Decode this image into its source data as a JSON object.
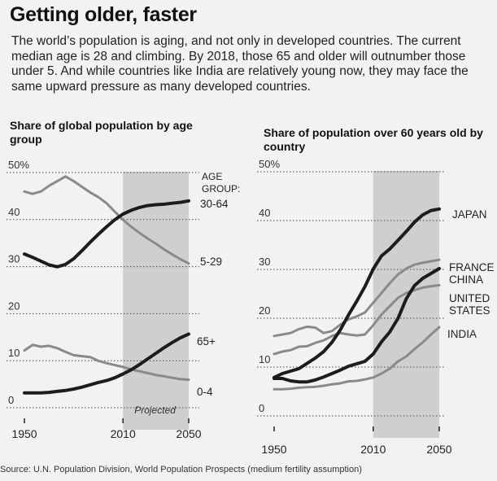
{
  "headline": "Getting older, faster",
  "dek": "The world’s population is aging, and not only in developed countries. The current median age is 28 and climbing. By 2018, those 65 and older will outnumber those under 5. And while countries like India are relatively young now, they may face the same upward pressure as many developed countries.",
  "source": "Source: U.N. Population Division, World Population Prospects (medium fertility assumption)",
  "colors": {
    "dark_line": "#1c1c1c",
    "light_line": "#8a8a8a",
    "projection_shade": "#c9c9c9",
    "grid": "#444444"
  },
  "chart_data": [
    {
      "type": "line",
      "title": "Share of global population by age group",
      "x": [
        1950,
        1955,
        1960,
        1965,
        1970,
        1975,
        1980,
        1985,
        1990,
        1995,
        2000,
        2005,
        2010,
        2015,
        2020,
        2025,
        2030,
        2035,
        2040,
        2045,
        2050
      ],
      "xlim": [
        1950,
        2050
      ],
      "xticks": [
        "1950",
        "2010",
        "2050"
      ],
      "ylim": [
        0,
        50
      ],
      "yticks": [
        "0",
        "10",
        "20",
        "30",
        "40",
        "50%"
      ],
      "grid": true,
      "projected_from": 2010,
      "projected_label": "Projected",
      "legend_title": "AGE GROUP:",
      "series": [
        {
          "name": "30-64",
          "style": "dark",
          "values": [
            32.5,
            31.8,
            31.0,
            30.2,
            29.8,
            30.3,
            31.5,
            33.2,
            35.0,
            36.7,
            38.3,
            39.8,
            41.0,
            41.8,
            42.4,
            42.8,
            43.0,
            43.1,
            43.3,
            43.5,
            43.8
          ]
        },
        {
          "name": "5-29",
          "style": "light",
          "values": [
            45.8,
            45.3,
            45.8,
            47.0,
            48.0,
            49.0,
            48.0,
            46.8,
            45.6,
            44.6,
            43.3,
            41.5,
            39.8,
            38.3,
            37.0,
            35.8,
            34.7,
            33.5,
            32.4,
            31.4,
            30.5
          ]
        },
        {
          "name": "65+",
          "style": "dark",
          "values": [
            3.0,
            3.0,
            3.0,
            3.1,
            3.3,
            3.5,
            3.8,
            4.2,
            4.7,
            5.2,
            5.6,
            6.2,
            7.0,
            7.9,
            9.0,
            10.2,
            11.4,
            12.6,
            13.7,
            14.7,
            15.5
          ]
        },
        {
          "name": "0-4",
          "style": "light",
          "values": [
            12.0,
            13.2,
            12.8,
            13.0,
            12.5,
            11.7,
            11.0,
            10.8,
            10.6,
            9.8,
            9.3,
            8.9,
            8.5,
            8.0,
            7.6,
            7.2,
            6.8,
            6.5,
            6.2,
            5.9,
            5.8
          ]
        }
      ]
    },
    {
      "type": "line",
      "title": "Share of population over 60 years old by country",
      "x": [
        1950,
        1955,
        1960,
        1965,
        1970,
        1975,
        1980,
        1985,
        1990,
        1995,
        2000,
        2005,
        2010,
        2015,
        2020,
        2025,
        2030,
        2035,
        2040,
        2045,
        2050
      ],
      "xlim": [
        1950,
        2050
      ],
      "xticks": [
        "1950",
        "2010",
        "2050"
      ],
      "ylim": [
        0,
        50
      ],
      "yticks": [
        "0",
        "10",
        "20",
        "30",
        "40",
        "50%"
      ],
      "grid": true,
      "projected_from": 2010,
      "series": [
        {
          "name": "JAPAN",
          "style": "dark",
          "values": [
            7.7,
            8.5,
            9.0,
            9.5,
            10.6,
            11.7,
            13.0,
            14.9,
            17.4,
            20.5,
            23.3,
            26.3,
            29.9,
            32.6,
            34.0,
            35.8,
            37.6,
            39.5,
            41.0,
            41.9,
            42.2
          ]
        },
        {
          "name": "FRANCE",
          "style": "light",
          "values": [
            16.2,
            16.5,
            16.8,
            17.6,
            18.1,
            17.9,
            16.8,
            17.2,
            18.5,
            19.6,
            20.2,
            21.0,
            23.0,
            25.0,
            27.0,
            28.8,
            30.0,
            30.8,
            31.2,
            31.5,
            31.8
          ]
        },
        {
          "name": "CHINA",
          "style": "dark",
          "values": [
            7.5,
            7.5,
            7.0,
            6.8,
            6.8,
            7.2,
            7.8,
            8.5,
            9.2,
            10.0,
            10.5,
            11.0,
            12.5,
            15.0,
            17.0,
            19.8,
            23.8,
            26.5,
            28.0,
            29.0,
            30.0
          ]
        },
        {
          "name": "UNITED STATES",
          "style": "light",
          "values": [
            12.5,
            13.0,
            13.3,
            14.0,
            14.1,
            14.8,
            15.3,
            16.2,
            16.8,
            16.5,
            16.3,
            16.5,
            18.4,
            20.6,
            22.3,
            24.0,
            25.0,
            25.6,
            26.1,
            26.4,
            26.6
          ]
        },
        {
          "name": "INDIA",
          "style": "light",
          "values": [
            5.3,
            5.3,
            5.4,
            5.6,
            5.7,
            5.8,
            6.0,
            6.3,
            6.5,
            6.9,
            7.0,
            7.3,
            7.7,
            8.5,
            9.5,
            11.0,
            12.0,
            13.5,
            14.9,
            16.5,
            18.0
          ]
        }
      ]
    }
  ]
}
